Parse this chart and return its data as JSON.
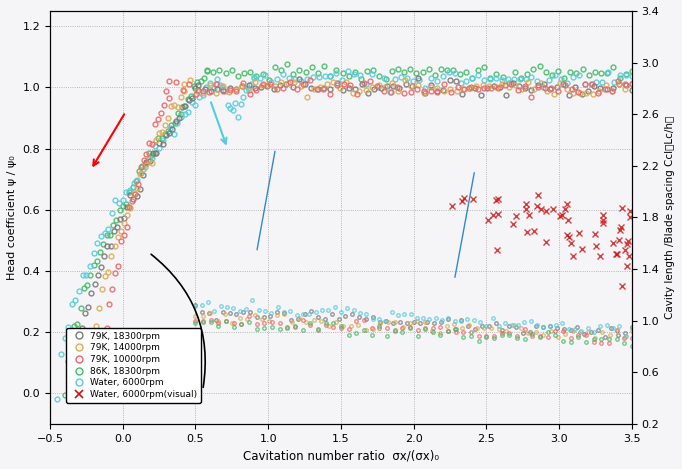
{
  "xlabel": "Cavitation number ratio  σx/(σx)₀",
  "ylabel_left": "Head coefficient ψ / ψ₀",
  "ylabel_right": "Cavity length /Blade spacing Ccl（Lc/h）",
  "xlim": [
    -0.5,
    3.5
  ],
  "ylim_left": [
    -0.1,
    1.25
  ],
  "ylim_right": [
    0.2,
    3.4
  ],
  "xticks": [
    -0.5,
    0.0,
    0.5,
    1.0,
    1.5,
    2.0,
    2.5,
    3.0,
    3.5
  ],
  "yticks_left": [
    0.0,
    0.2,
    0.4,
    0.6,
    0.8,
    1.0,
    1.2
  ],
  "yticks_right": [
    0.2,
    0.6,
    1.0,
    1.4,
    1.8,
    2.2,
    2.6,
    3.0,
    3.4
  ],
  "legend_entries": [
    "79K, 18300rpm",
    "79K, 14000rpm",
    "79K, 10000rpm",
    "86K, 18300rpm",
    "Water, 6000rpm",
    "Water, 6000rpm(visual)"
  ],
  "colors": {
    "c1": "#777777",
    "c2": "#ddaa55",
    "c3": "#ee6666",
    "c4": "#44bb66",
    "c5": "#55ccdd",
    "c6": "#cc1111"
  },
  "background_color": "#f0f0f8"
}
